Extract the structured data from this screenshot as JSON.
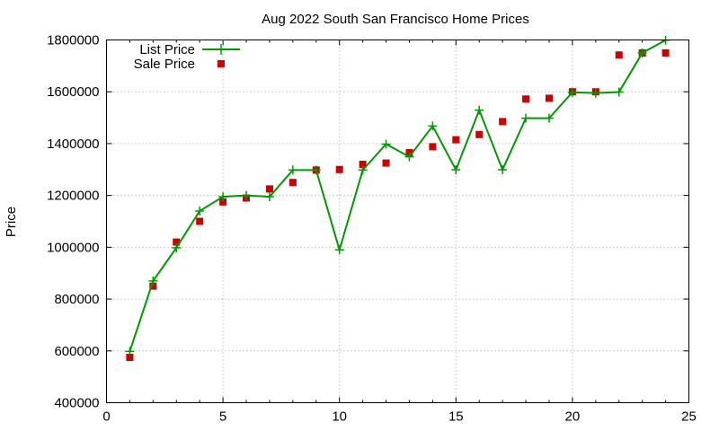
{
  "chart_data": {
    "type": "line",
    "title": "Aug 2022 South San Francisco Home Prices",
    "xlabel": "",
    "ylabel": "Price",
    "xlim": [
      0,
      25
    ],
    "ylim": [
      400000,
      1800000
    ],
    "xticks": [
      0,
      5,
      10,
      15,
      20,
      25
    ],
    "yticks": [
      400000,
      600000,
      800000,
      1000000,
      1200000,
      1400000,
      1600000,
      1800000
    ],
    "grid": true,
    "legend_position": "top-left",
    "x": [
      1,
      2,
      3,
      4,
      5,
      6,
      7,
      8,
      9,
      10,
      11,
      12,
      13,
      14,
      15,
      16,
      17,
      18,
      19,
      20,
      21,
      22,
      23,
      24
    ],
    "series": [
      {
        "name": "List Price",
        "style": "linespoints",
        "color": "#009900",
        "marker": "plus",
        "values": [
          598000,
          870000,
          998000,
          1140000,
          1195000,
          1200000,
          1195000,
          1298000,
          1298000,
          990000,
          1298000,
          1398000,
          1349000,
          1468000,
          1299000,
          1529000,
          1299000,
          1498000,
          1498000,
          1598000,
          1595000,
          1599000,
          1750000,
          1799000
        ]
      },
      {
        "name": "Sale Price",
        "style": "points",
        "color": "#cc0000",
        "marker": "square",
        "values": [
          575000,
          850000,
          1020000,
          1100000,
          1175000,
          1190000,
          1225000,
          1250000,
          1298000,
          1300000,
          1320000,
          1325000,
          1365000,
          1388000,
          1415000,
          1435000,
          1485000,
          1572000,
          1575000,
          1600000,
          1600000,
          1742000,
          1750000,
          1750000
        ]
      }
    ]
  }
}
